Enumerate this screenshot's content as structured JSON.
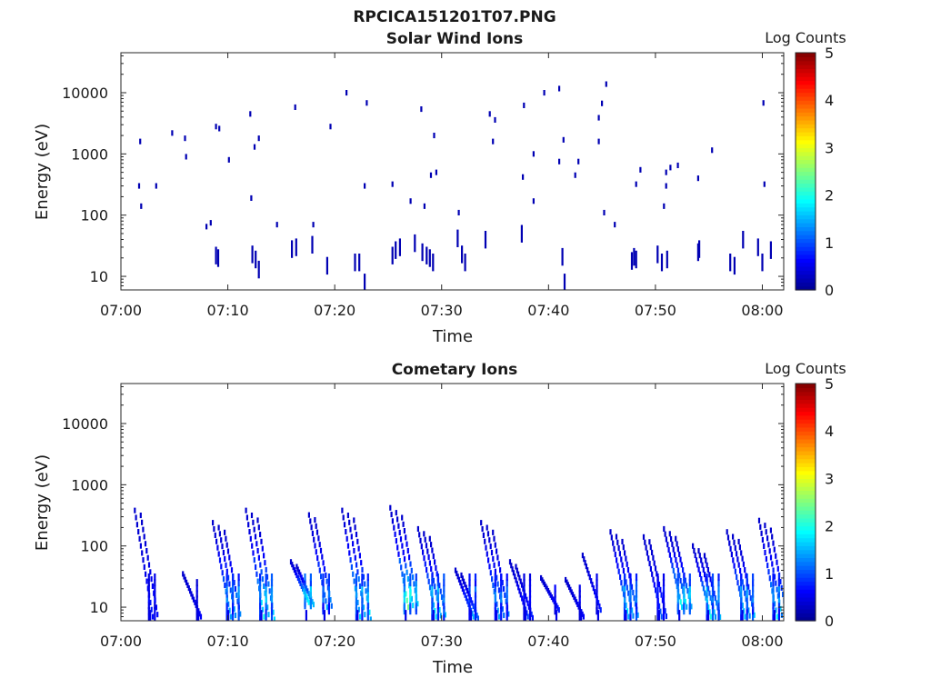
{
  "figure_title": "RPCICA151201T07.PNG",
  "colorbar_label": "Log Counts",
  "colorbar_ticks": [
    "0",
    "1",
    "2",
    "3",
    "4",
    "5"
  ],
  "colors": {
    "scatter_mark": "#00008f",
    "axis": "#262626",
    "background": "#ffffff"
  },
  "colormap": [
    "#00008f",
    "#0000ff",
    "#0080ff",
    "#00ffff",
    "#80ff80",
    "#ffff00",
    "#ff8000",
    "#ff0000",
    "#800000"
  ],
  "chart_data": [
    {
      "type": "heatmap",
      "title": "Solar Wind Ions",
      "xlabel": "Time",
      "ylabel": "Energy (eV)",
      "x_ticks": [
        "07:00",
        "07:10",
        "07:20",
        "07:30",
        "07:40",
        "07:50",
        "08:00"
      ],
      "y_ticks": [
        "10",
        "100",
        "1000",
        "10000"
      ],
      "y_scale": "log",
      "xlim_minutes": [
        0,
        62
      ],
      "ylim": [
        6,
        45000
      ],
      "colorbar": {
        "label": "Log Counts",
        "range": [
          0,
          5
        ]
      },
      "points": [
        [
          1.8,
          1600,
          0.2
        ],
        [
          1.7,
          300,
          0.2
        ],
        [
          1.9,
          140,
          0.2
        ],
        [
          3.3,
          300,
          0.2
        ],
        [
          4.8,
          2200,
          0.2
        ],
        [
          6.0,
          1800,
          0.2
        ],
        [
          6.1,
          900,
          0.2
        ],
        [
          8.0,
          65,
          0.2
        ],
        [
          8.4,
          75,
          0.2
        ],
        [
          8.9,
          2800,
          0.2
        ],
        [
          9.2,
          2600,
          0.2
        ],
        [
          10.1,
          800,
          0.2
        ],
        [
          12.1,
          4500,
          0.2
        ],
        [
          12.2,
          190,
          0.2
        ],
        [
          12.5,
          1300,
          0.2
        ],
        [
          12.9,
          1800,
          0.2
        ],
        [
          14.6,
          70,
          0.2
        ],
        [
          16.3,
          5800,
          0.2
        ],
        [
          18.0,
          70,
          0.2
        ],
        [
          19.6,
          2800,
          0.2
        ],
        [
          21.1,
          10000,
          0.2
        ],
        [
          22.8,
          300,
          0.2
        ],
        [
          23.0,
          6800,
          0.2
        ],
        [
          25.4,
          320,
          0.2
        ],
        [
          27.1,
          170,
          0.2
        ],
        [
          28.1,
          5400,
          0.2
        ],
        [
          28.4,
          140,
          0.2
        ],
        [
          29.0,
          450,
          0.2
        ],
        [
          29.3,
          2000,
          0.2
        ],
        [
          29.5,
          500,
          0.2
        ],
        [
          31.6,
          110,
          0.2
        ],
        [
          34.5,
          4500,
          0.2
        ],
        [
          34.8,
          1600,
          0.2
        ],
        [
          35.0,
          3600,
          0.2
        ],
        [
          37.6,
          420,
          0.2
        ],
        [
          37.7,
          6200,
          0.2
        ],
        [
          38.6,
          1000,
          0.2
        ],
        [
          38.6,
          170,
          0.2
        ],
        [
          39.6,
          10000,
          0.2
        ],
        [
          41.0,
          11700,
          0.2
        ],
        [
          41.4,
          1700,
          0.2
        ],
        [
          41.0,
          750,
          0.2
        ],
        [
          42.5,
          450,
          0.2
        ],
        [
          42.8,
          750,
          0.2
        ],
        [
          44.7,
          1600,
          0.2
        ],
        [
          44.7,
          3900,
          0.2
        ],
        [
          45.0,
          6700,
          0.2
        ],
        [
          45.2,
          110,
          0.2
        ],
        [
          45.4,
          13800,
          0.2
        ],
        [
          46.2,
          70,
          0.2
        ],
        [
          48.2,
          320,
          0.2
        ],
        [
          48.6,
          550,
          0.2
        ],
        [
          50.8,
          140,
          0.2
        ],
        [
          51.0,
          500,
          0.2
        ],
        [
          51.0,
          300,
          0.2
        ],
        [
          51.4,
          600,
          0.2
        ],
        [
          52.1,
          650,
          0.2
        ],
        [
          54.0,
          400,
          0.2
        ],
        [
          55.3,
          1150,
          0.2
        ],
        [
          58.2,
          40,
          0.2
        ],
        [
          60.1,
          6800,
          0.2
        ],
        [
          60.2,
          320,
          0.2
        ],
        [
          8.9,
          22,
          0.2
        ],
        [
          9.1,
          20,
          0.2
        ],
        [
          12.3,
          23,
          0.2
        ],
        [
          12.6,
          19,
          0.2
        ],
        [
          12.9,
          13,
          0.2
        ],
        [
          16.0,
          28,
          0.2
        ],
        [
          16.4,
          30,
          0.2
        ],
        [
          17.9,
          33,
          0.2
        ],
        [
          19.3,
          15,
          0.2
        ],
        [
          21.9,
          17,
          0.2
        ],
        [
          22.3,
          17,
          0.2
        ],
        [
          22.8,
          8,
          0.2
        ],
        [
          25.4,
          22,
          0.2
        ],
        [
          25.7,
          27,
          0.2
        ],
        [
          26.1,
          30,
          0.2
        ],
        [
          27.5,
          35,
          0.2
        ],
        [
          28.2,
          25,
          0.2
        ],
        [
          28.6,
          22,
          0.2
        ],
        [
          28.9,
          20,
          0.2
        ],
        [
          29.2,
          17,
          0.2
        ],
        [
          31.5,
          42,
          0.2
        ],
        [
          31.9,
          23,
          0.2
        ],
        [
          32.2,
          17,
          0.2
        ],
        [
          34.1,
          40,
          0.2
        ],
        [
          37.5,
          50,
          0.2
        ],
        [
          41.3,
          21,
          0.2
        ],
        [
          41.5,
          8,
          0.2
        ],
        [
          47.8,
          18,
          0.2
        ],
        [
          48.0,
          21,
          0.2
        ],
        [
          48.2,
          19,
          0.2
        ],
        [
          50.2,
          23,
          0.2
        ],
        [
          50.6,
          17,
          0.2
        ],
        [
          51.1,
          19,
          0.2
        ],
        [
          54.0,
          25,
          0.2
        ],
        [
          54.1,
          28,
          0.2
        ],
        [
          57.0,
          17,
          0.2
        ],
        [
          57.4,
          15,
          0.2
        ],
        [
          59.6,
          30,
          0.2
        ],
        [
          60.0,
          17,
          0.2
        ],
        [
          60.8,
          27,
          0.2
        ]
      ]
    },
    {
      "type": "heatmap",
      "title": "Cometary Ions",
      "xlabel": "Time",
      "ylabel": "Energy (eV)",
      "x_ticks": [
        "07:00",
        "07:10",
        "07:20",
        "07:30",
        "07:40",
        "07:50",
        "08:00"
      ],
      "y_ticks": [
        "10",
        "100",
        "1000",
        "10000"
      ],
      "y_scale": "log",
      "xlim_minutes": [
        0,
        62
      ],
      "ylim": [
        6,
        45000
      ],
      "colorbar": {
        "label": "Log Counts",
        "range": [
          0,
          5
        ]
      },
      "bursts": [
        {
          "t": 1.3,
          "emax": 380,
          "emin": 7,
          "intensity": 0.5,
          "streaks": 2
        },
        {
          "t": 5.8,
          "emax": 35,
          "emin": 7,
          "intensity": 0.3,
          "streaks": 1
        },
        {
          "t": 8.6,
          "emax": 240,
          "emin": 7,
          "intensity": 1.6,
          "streaks": 3
        },
        {
          "t": 11.7,
          "emax": 380,
          "emin": 7,
          "intensity": 1.9,
          "streaks": 3
        },
        {
          "t": 15.9,
          "emax": 55,
          "emin": 12,
          "intensity": 2.2,
          "streaks": 2
        },
        {
          "t": 17.6,
          "emax": 320,
          "emin": 10,
          "intensity": 1.3,
          "streaks": 2
        },
        {
          "t": 20.7,
          "emax": 380,
          "emin": 7,
          "intensity": 1.9,
          "streaks": 3
        },
        {
          "t": 25.2,
          "emax": 420,
          "emin": 10,
          "intensity": 2.3,
          "streaks": 3
        },
        {
          "t": 27.8,
          "emax": 190,
          "emin": 7,
          "intensity": 1.8,
          "streaks": 3
        },
        {
          "t": 31.3,
          "emax": 40,
          "emin": 7,
          "intensity": 1.2,
          "streaks": 2
        },
        {
          "t": 33.7,
          "emax": 240,
          "emin": 7,
          "intensity": 1.4,
          "streaks": 3
        },
        {
          "t": 36.4,
          "emax": 55,
          "emin": 7,
          "intensity": 0.6,
          "streaks": 2
        },
        {
          "t": 39.3,
          "emax": 30,
          "emin": 9,
          "intensity": 0.5,
          "streaks": 1
        },
        {
          "t": 41.6,
          "emax": 28,
          "emin": 7,
          "intensity": 0.4,
          "streaks": 1
        },
        {
          "t": 43.2,
          "emax": 70,
          "emin": 9,
          "intensity": 0.5,
          "streaks": 1
        },
        {
          "t": 45.8,
          "emax": 170,
          "emin": 7,
          "intensity": 1.7,
          "streaks": 3
        },
        {
          "t": 48.9,
          "emax": 140,
          "emin": 7,
          "intensity": 0.8,
          "streaks": 2
        },
        {
          "t": 50.8,
          "emax": 190,
          "emin": 10,
          "intensity": 2.0,
          "streaks": 3
        },
        {
          "t": 53.5,
          "emax": 100,
          "emin": 7,
          "intensity": 1.8,
          "streaks": 3
        },
        {
          "t": 56.7,
          "emax": 170,
          "emin": 7,
          "intensity": 1.7,
          "streaks": 3
        },
        {
          "t": 59.7,
          "emax": 260,
          "emin": 7,
          "intensity": 1.6,
          "streaks": 3
        }
      ]
    }
  ]
}
